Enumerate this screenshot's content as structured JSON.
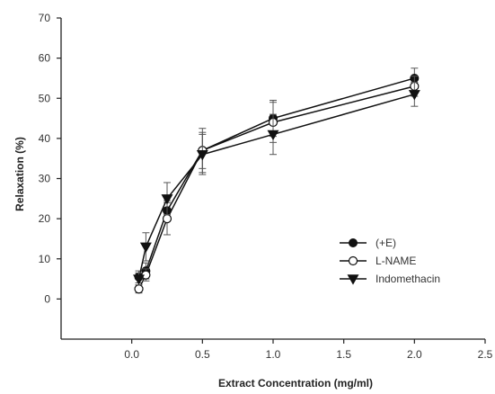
{
  "chart_data": {
    "type": "line",
    "xlabel": "Extract Concentration (mg/ml)",
    "ylabel": "Relaxation (%)",
    "xlim": [
      -0.5,
      2.5
    ],
    "ylim": [
      -10,
      70
    ],
    "xticks": [
      "0.0",
      "0.5",
      "1.0",
      "1.5",
      "2.0",
      "2.5"
    ],
    "xtick_values": [
      0,
      0.5,
      1.0,
      1.5,
      2.0,
      2.5
    ],
    "yticks": [
      "0",
      "10",
      "20",
      "30",
      "40",
      "50",
      "60",
      "70"
    ],
    "ytick_values": [
      0,
      10,
      20,
      30,
      40,
      50,
      60,
      70
    ],
    "grid": false,
    "legend_position": "center-right",
    "series": [
      {
        "name": "(+E)",
        "marker": "filled-circle",
        "color": "#111111",
        "x": [
          0.05,
          0.1,
          0.25,
          0.5,
          1.0,
          2.0
        ],
        "y": [
          5.5,
          7,
          22,
          37,
          45,
          55
        ],
        "err": [
          1.5,
          2,
          2.5,
          5.5,
          4.5,
          2.5
        ]
      },
      {
        "name": "L-NAME",
        "marker": "open-circle",
        "color": "#111111",
        "x": [
          0.05,
          0.1,
          0.25,
          0.5,
          1.0,
          2.0
        ],
        "y": [
          2.5,
          6,
          20,
          37,
          44,
          53
        ],
        "err": [
          1,
          1.5,
          4,
          4.5,
          5,
          2.5
        ]
      },
      {
        "name": "Indomethacin",
        "marker": "filled-triangle-down",
        "color": "#111111",
        "x": [
          0.05,
          0.1,
          0.25,
          0.5,
          1.0,
          2.0
        ],
        "y": [
          5,
          13,
          25,
          36,
          41,
          51
        ],
        "err": [
          1.5,
          3.5,
          4,
          5,
          5,
          3
        ]
      }
    ]
  }
}
